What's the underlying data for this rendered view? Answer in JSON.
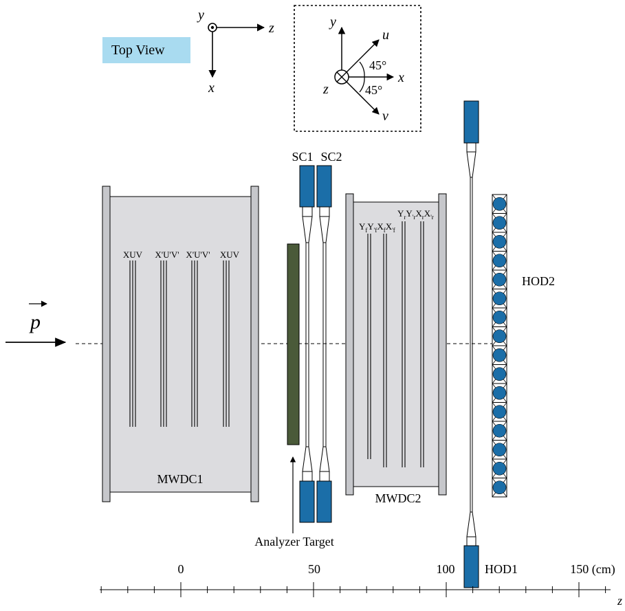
{
  "view_label": "Top View",
  "axes_main": {
    "vertical_up": "y",
    "horizontal": "z",
    "vertical_down": "x"
  },
  "axes_inset": {
    "y": "y",
    "u": "u",
    "x": "x",
    "z": "z",
    "v": "v",
    "angle_upper": "45°",
    "angle_lower": "45°"
  },
  "beam_label": "p",
  "mwdc1": {
    "label": "MWDC1",
    "planes": [
      "XUV",
      "X'U'V'",
      "X'U'V'",
      "XUV"
    ]
  },
  "mwdc2": {
    "label": "MWDC2",
    "planes_front": [
      "Y",
      "f",
      "Y",
      "'f",
      "X",
      "f",
      "X",
      "'f"
    ],
    "planes_rear": [
      "Y",
      "r",
      "Y",
      "'r",
      "X",
      "r",
      "X",
      "'r"
    ]
  },
  "scintillators": {
    "sc1": "SC1",
    "sc2": "SC2"
  },
  "target_label": "Analyzer Target",
  "hod1_label": "HOD1",
  "hod2_label": "HOD2",
  "scale": {
    "ticks": [
      {
        "label": "0",
        "value": 0
      },
      {
        "label": "50",
        "value": 50
      },
      {
        "label": "100",
        "value": 100
      },
      {
        "label": "150 (cm)",
        "value": 150
      }
    ],
    "axis_label": "z"
  },
  "colors": {
    "pmt_blue": "#1b6ea8",
    "chamber_gray": "#dcdcdf",
    "frame_gray": "#c6c7cb",
    "target_green": "#4a5a39",
    "badge_blue": "#a9dbf0"
  }
}
